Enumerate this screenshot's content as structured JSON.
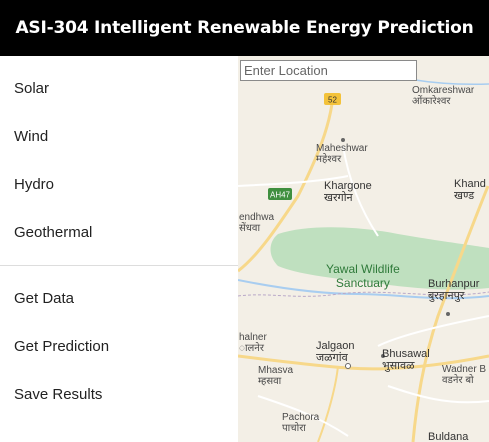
{
  "header": {
    "title": "ASI-304 Intelligent Renewable Energy Prediction"
  },
  "sidebar": {
    "energy_items": [
      {
        "label": "Solar"
      },
      {
        "label": "Wind"
      },
      {
        "label": "Hydro"
      },
      {
        "label": "Geothermal"
      }
    ],
    "action_items": [
      {
        "label": "Get Data"
      },
      {
        "label": "Get Prediction"
      },
      {
        "label": "Save Results"
      }
    ]
  },
  "map": {
    "search": {
      "placeholder": "Enter Location"
    },
    "road_shields": [
      "52",
      "AH47"
    ],
    "labels": {
      "omkareshwar": {
        "en": "Omkareshwar",
        "hi": "ओंकारेश्वर"
      },
      "maheshwar": {
        "en": "Maheshwar",
        "hi": "महेश्वर"
      },
      "khargone": {
        "en": "Khargone",
        "hi": "खरगोन"
      },
      "khandwa": {
        "en": "Khand",
        "hi": "खण्ड"
      },
      "sendhwa": {
        "en": "endhwa",
        "hi": "सेंधवा"
      },
      "yawal": {
        "en1": "Yawal Wildlife",
        "en2": "Sanctuary"
      },
      "burhanpur": {
        "en": "Burhanpur",
        "hi": "बुरहानपुर"
      },
      "chalner": {
        "en": "halner",
        "hi": "ालनेर"
      },
      "jalgaon": {
        "en": "Jalgaon",
        "hi": "जळगांव"
      },
      "bhusawal": {
        "en": "Bhusawal",
        "hi": "भुसावळ"
      },
      "mhasva": {
        "en": "Mhasva",
        "hi": "म्हसवा"
      },
      "wadner": {
        "en": "Wadner B",
        "hi": "वडनेर बो"
      },
      "pachora": {
        "en": "Pachora",
        "hi": "पाचोरा"
      },
      "buldana": {
        "en": "Buldana"
      }
    }
  },
  "colors": {
    "header_bg": "#000000",
    "header_text": "#ffffff",
    "park_green": "#bfe0bf",
    "highway_yellow": "#f7d88a"
  }
}
